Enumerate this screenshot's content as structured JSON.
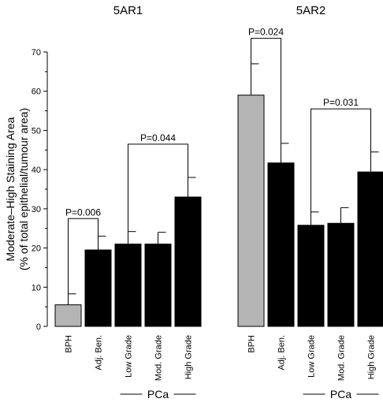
{
  "chart_data": {
    "type": "bar",
    "ylabel_line1": "Moderate–High Staining Area",
    "ylabel_line2": "(% of total epithelial/tumour area)",
    "ylim": [
      0,
      70
    ],
    "yticks": [
      0,
      10,
      20,
      30,
      40,
      50,
      60,
      70
    ],
    "grid": false,
    "groups": [
      {
        "title": "5AR1",
        "categories": [
          "BPH",
          "Adj. Ben.",
          "Low Grade",
          "Mod. Grade",
          "High Grade"
        ],
        "values": [
          5.5,
          19.5,
          21,
          21,
          33
        ],
        "errors": [
          2.8,
          3.5,
          3.2,
          3,
          5
        ],
        "fill": [
          "#b4b4b4",
          "#000000",
          "#000000",
          "#000000",
          "#000000"
        ],
        "pvalues": [
          {
            "label": "P=0.006",
            "from": 0,
            "to": 1,
            "left_base": 8.3,
            "right_base": 23,
            "top": 27.5
          },
          {
            "label": "P=0.044",
            "from": 2,
            "to": 4,
            "left_base": 24.2,
            "right_base": 38,
            "top": 46.5
          }
        ],
        "pca_label": "PCa"
      },
      {
        "title": "5AR2",
        "categories": [
          "BPH",
          "Adj. Ben.",
          "Low Grade",
          "Mod. Grade",
          "High Grade"
        ],
        "values": [
          59,
          41.7,
          25.8,
          26.3,
          39.4
        ],
        "errors": [
          8,
          5,
          3.4,
          4,
          5.1
        ],
        "fill": [
          "#b4b4b4",
          "#000000",
          "#000000",
          "#000000",
          "#000000"
        ],
        "pvalues": [
          {
            "label": "P=0.024",
            "from": 0,
            "to": 1,
            "left_base": 67,
            "right_base": 46.7,
            "top": 73.5
          },
          {
            "label": "P=0.031",
            "from": 2,
            "to": 4,
            "left_base": 29.2,
            "right_base": 44.5,
            "top": 55.5
          }
        ],
        "pca_label": "PCa"
      }
    ]
  }
}
